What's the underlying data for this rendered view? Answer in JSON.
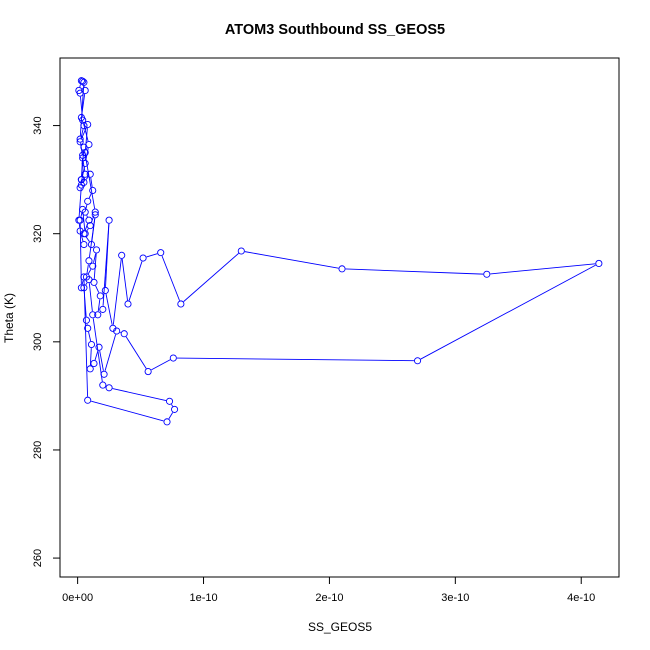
{
  "chart_data": {
    "type": "line",
    "title": "ATOM3 Southbound SS_GEOS5",
    "xlabel": "SS_GEOS5",
    "ylabel": "Theta (K)",
    "xlim": [
      -1.4e-11,
      4.3e-10
    ],
    "ylim": [
      256.5,
      352.5
    ],
    "x_ticks": [
      {
        "value": 0,
        "label": "0e+00"
      },
      {
        "value": 1e-10,
        "label": "1e-10"
      },
      {
        "value": 2e-10,
        "label": "2e-10"
      },
      {
        "value": 3e-10,
        "label": "3e-10"
      },
      {
        "value": 4e-10,
        "label": "4e-10"
      }
    ],
    "y_ticks": [
      {
        "value": 260,
        "label": "260"
      },
      {
        "value": 280,
        "label": "280"
      },
      {
        "value": 300,
        "label": "300"
      },
      {
        "value": 320,
        "label": "320"
      },
      {
        "value": 340,
        "label": "340"
      }
    ],
    "series_color": "#0000ff",
    "marker": "open-circle",
    "series": [
      {
        "x": [
          4e-12,
          6e-12,
          3e-12,
          5e-12,
          2e-12,
          8e-12,
          6e-12,
          4e-12,
          3e-12,
          5e-12,
          1e-11,
          1.2e-11,
          8e-12,
          6e-12,
          9e-12,
          5e-12,
          1.1e-11,
          1.4e-11,
          9e-12,
          7e-12,
          1.2e-11,
          1.5e-11,
          1.3e-11,
          1.8e-11,
          1.6e-11,
          2e-11,
          2.5e-11,
          2.2e-11,
          2.8e-11,
          3.5e-11,
          4e-11,
          5.2e-11,
          6.6e-11,
          8.2e-11,
          1.3e-10,
          2.1e-10,
          3.25e-10,
          4.14e-10,
          2.7e-10,
          7.6e-11,
          5.6e-11,
          3.7e-11,
          3.1e-11,
          2.1e-11,
          1.7e-11,
          1.3e-11,
          1e-11,
          1.1e-11,
          8e-12,
          7e-12,
          5e-12,
          9e-12,
          1.2e-11,
          2e-11,
          2.5e-11,
          7.3e-11,
          7.7e-11,
          7.1e-11,
          8e-12,
          5e-12,
          3e-12,
          2e-12,
          4e-12,
          6e-12,
          1e-11,
          1.4e-11,
          5e-12,
          3e-12,
          2e-12,
          6e-12,
          9e-12,
          4e-12,
          2e-12,
          1e-12,
          3e-12,
          5e-12,
          2e-12,
          4e-12,
          6e-12,
          3e-12,
          1e-12,
          2e-12,
          5e-12
        ],
        "y": [
          348.2,
          346.5,
          341.5,
          340.0,
          337.0,
          340.2,
          335.0,
          334.5,
          330.0,
          329.5,
          331.0,
          328.0,
          326.0,
          324.0,
          322.5,
          320.0,
          318.0,
          323.5,
          315.0,
          312.0,
          314.0,
          317.0,
          311.0,
          308.5,
          305.0,
          306.0,
          322.5,
          309.5,
          302.5,
          316.0,
          307.0,
          315.5,
          316.5,
          307.0,
          316.8,
          313.5,
          312.5,
          314.5,
          296.5,
          297.0,
          294.5,
          301.5,
          302.0,
          294.0,
          299.0,
          296.0,
          295.0,
          299.5,
          302.5,
          304.0,
          310.0,
          311.5,
          305.0,
          292.0,
          291.5,
          289.0,
          287.5,
          285.2,
          289.2,
          312.0,
          310.0,
          322.5,
          324.5,
          320.0,
          321.5,
          324.0,
          336.0,
          330.0,
          328.5,
          333.0,
          336.5,
          341.0,
          346.0,
          346.5,
          348.3,
          348.0,
          337.5,
          334.0,
          331.0,
          329.0,
          322.5,
          320.5,
          318.0
        ]
      }
    ]
  }
}
